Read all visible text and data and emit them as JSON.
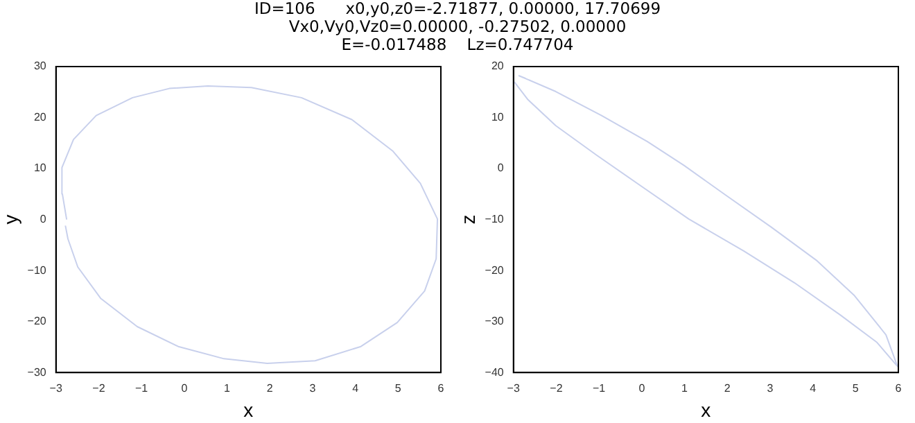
{
  "chart_data": [
    {
      "type": "line",
      "title": "ID=106      x0,y0,z0=-2.71877, 0.00000, 17.70699\nVx0,Vy0,Vz0=0.00000, -0.27502, 0.00000\nE=-0.017488    Lz=0.747704",
      "xlabel": "x",
      "ylabel": "y",
      "xlim": [
        -3,
        6
      ],
      "ylim": [
        -30,
        30
      ],
      "xticks": [
        -3,
        -2,
        -1,
        0,
        1,
        2,
        3,
        4,
        5,
        6
      ],
      "yticks": [
        -30,
        -20,
        -10,
        0,
        10,
        20,
        30
      ],
      "grid": false,
      "marker": "none",
      "series": [
        {
          "color": "#c8d0ec",
          "x": [
            -2.75,
            -2.85,
            -2.86,
            -2.59,
            -2.06,
            -1.21,
            -0.35,
            0.55,
            1.57,
            2.74,
            3.92,
            4.88,
            5.52,
            5.92,
            5.89,
            5.62,
            4.98,
            4.13,
            3.06,
            1.94,
            0.93,
            -0.14,
            -1.1,
            -1.95,
            -2.49,
            -2.72,
            -2.78
          ],
          "values": [
            0,
            5,
            10.2,
            15.7,
            20.4,
            23.9,
            25.7,
            26.2,
            25.9,
            23.9,
            19.6,
            13.4,
            7.1,
            0.1,
            -7.7,
            -14,
            -20.2,
            -24.9,
            -27.7,
            -28.2,
            -27.3,
            -24.9,
            -21,
            -15.5,
            -9.3,
            -3.8,
            -1.2
          ]
        }
      ]
    },
    {
      "type": "line",
      "xlabel": "x",
      "ylabel": "z",
      "xlim": [
        -3,
        6
      ],
      "ylim": [
        -40,
        20
      ],
      "xticks": [
        -3,
        -2,
        -1,
        0,
        1,
        2,
        3,
        4,
        5,
        6
      ],
      "yticks": [
        -40,
        -30,
        -20,
        -10,
        0,
        10,
        20
      ],
      "grid": false,
      "marker": "none",
      "series": [
        {
          "color": "#c8d0ec",
          "x": [
            -2.72,
            -2.87,
            -2.01,
            -0.94,
            0.13,
            0.99,
            1.96,
            3.03,
            4.1,
            4.96,
            5.71,
            5.98,
            5.5,
            4.64,
            3.57,
            2.39,
            1.1,
            0.03,
            -1.05,
            -2.01,
            -2.66,
            -2.98
          ],
          "values": [
            17.7,
            18.2,
            15.1,
            10.4,
            5.3,
            0.6,
            -5.2,
            -11.5,
            -18.1,
            -24.8,
            -32.6,
            -38.8,
            -34.1,
            -28.7,
            -22.4,
            -16.2,
            -9.9,
            -3.7,
            2.6,
            8.4,
            13.5,
            17
          ]
        }
      ]
    }
  ]
}
